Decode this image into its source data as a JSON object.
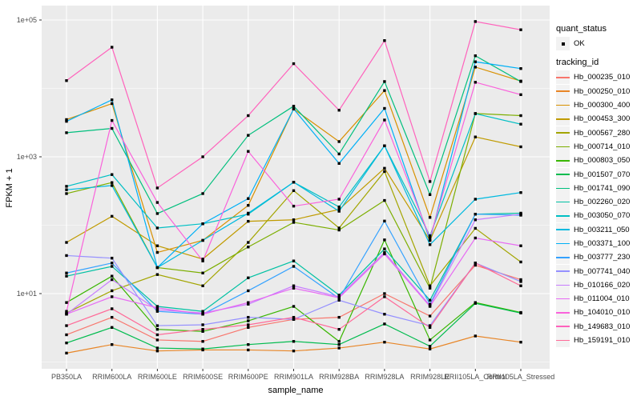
{
  "figure": {
    "background": "#FFFFFF",
    "panel_background": "#EBEBEB",
    "grid_color": "#FFFFFF",
    "tick_color": "#333333",
    "axis_text_color": "#4D4D4D",
    "point_color": "#000000",
    "legend_key_background": "#F2F2F2"
  },
  "legend": {
    "quant_status_title": "quant_status",
    "quant_status_items": [
      {
        "label": "OK"
      }
    ],
    "tracking_title": "tracking_id"
  },
  "chart_data": {
    "type": "line",
    "title": "",
    "xlabel": "sample_name",
    "ylabel": "FPKM + 1",
    "y_scale": "log10",
    "ylim": [
      1,
      158000
    ],
    "grid": true,
    "legend_position": "right",
    "y_ticks": [
      {
        "label": "1e+01",
        "value": 10
      },
      {
        "label": "1e+03",
        "value": 1000
      },
      {
        "label": "1e+05",
        "value": 100000
      }
    ],
    "y_minor_values": [
      1,
      100,
      10000
    ],
    "categories": [
      "PB350LA",
      "RRIM600LA",
      "RRIM600LE",
      "RRIM600SE",
      "RRIM600PE",
      "RRIM901LA",
      "RRIM928BA",
      "RRIM928LA",
      "RRIM928LE",
      "RRII105LA_Control",
      "RRII105LA_Stressed"
    ],
    "quant_status_all_points": "OK",
    "series": [
      {
        "name": "Hb_000235_010",
        "color": "#F8766D",
        "values": [
          2.5,
          4.5,
          2.1,
          2.0,
          3.2,
          4.2,
          4.5,
          10,
          4.7,
          26,
          16
        ]
      },
      {
        "name": "Hb_000250_010",
        "color": "#E88526",
        "values": [
          1.35,
          1.8,
          1.45,
          1.5,
          1.5,
          1.45,
          1.6,
          1.95,
          1.55,
          2.4,
          1.95
        ]
      },
      {
        "name": "Hb_000300_400",
        "color": "#D89000",
        "values": [
          3500,
          6000,
          40,
          60,
          195,
          5000,
          1670,
          9300,
          130,
          20500,
          12800
        ]
      },
      {
        "name": "Hb_000453_300",
        "color": "#C09B00",
        "values": [
          56,
          135,
          50,
          32,
          114,
          120,
          170,
          680,
          60,
          1950,
          1400
        ]
      },
      {
        "name": "Hb_000567_280",
        "color": "#A3A500",
        "values": [
          5.2,
          11,
          19,
          13,
          56,
          320,
          91,
          610,
          13,
          90,
          29
        ]
      },
      {
        "name": "Hb_000714_010",
        "color": "#7CAE00",
        "values": [
          290,
          420,
          24,
          20,
          48,
          110,
          85,
          230,
          12,
          4300,
          4000
        ]
      },
      {
        "name": "Hb_000803_050",
        "color": "#39B600",
        "values": [
          7.4,
          18,
          3.0,
          2.8,
          4.0,
          6.5,
          2.0,
          61,
          2.1,
          7.4,
          5.3
        ]
      },
      {
        "name": "Hb_001507_070",
        "color": "#00BB4E",
        "values": [
          1.9,
          3.2,
          1.6,
          1.55,
          1.8,
          2.0,
          1.8,
          3.6,
          1.7,
          7.2,
          5.2
        ]
      },
      {
        "name": "Hb_001741_090",
        "color": "#00BF7D",
        "values": [
          2250,
          2600,
          148,
          290,
          2060,
          5500,
          1100,
          12600,
          280,
          30000,
          12600
        ]
      },
      {
        "name": "Hb_002260_020",
        "color": "#00C1A3",
        "values": [
          18,
          25,
          6.5,
          5.5,
          17,
          30,
          9.5,
          45,
          8,
          145,
          150
        ]
      },
      {
        "name": "Hb_003050_070",
        "color": "#00BFC4",
        "values": [
          370,
          550,
          91,
          105,
          145,
          425,
          185,
          1450,
          70,
          4270,
          3000
        ]
      },
      {
        "name": "Hb_003211_050",
        "color": "#00BAE0",
        "values": [
          330,
          380,
          24,
          60,
          150,
          425,
          160,
          1450,
          52,
          240,
          300
        ]
      },
      {
        "name": "Hb_003371_100",
        "color": "#00B0F6",
        "values": [
          3300,
          6800,
          24,
          105,
          245,
          5000,
          800,
          5100,
          60,
          24500,
          19500
        ]
      },
      {
        "name": "Hb_003777_230",
        "color": "#35A2FF",
        "values": [
          20,
          28,
          5.5,
          5.0,
          11,
          25,
          8.5,
          115,
          7,
          145,
          140
        ]
      },
      {
        "name": "Hb_007741_040",
        "color": "#9590FF",
        "values": [
          36,
          33,
          3.4,
          3.5,
          4.5,
          4.2,
          8.0,
          5.0,
          3.4,
          28,
          15
        ]
      },
      {
        "name": "Hb_010166_020",
        "color": "#C77CFF",
        "values": [
          5.0,
          16,
          5.8,
          5.2,
          7.0,
          13,
          9.0,
          40,
          6.7,
          120,
          145
        ]
      },
      {
        "name": "Hb_011004_010",
        "color": "#E76BF3",
        "values": [
          5.0,
          9.0,
          6.2,
          5.0,
          7.4,
          12,
          8.7,
          38,
          6.5,
          65,
          50
        ]
      },
      {
        "name": "Hb_104010_010",
        "color": "#FA62DB",
        "values": [
          5.5,
          3400,
          215,
          30,
          1200,
          190,
          240,
          3450,
          65,
          12300,
          8100
        ]
      },
      {
        "name": "Hb_149683_010",
        "color": "#FF62BC",
        "values": [
          13000,
          40000,
          350,
          1000,
          4000,
          23000,
          4800,
          50000,
          435,
          95000,
          72000
        ]
      },
      {
        "name": "Hb_159191_010",
        "color": "#FF6A98",
        "values": [
          3.4,
          6.0,
          2.5,
          3.0,
          3.5,
          4.5,
          3.0,
          9.0,
          3.2,
          28,
          13
        ]
      }
    ]
  }
}
